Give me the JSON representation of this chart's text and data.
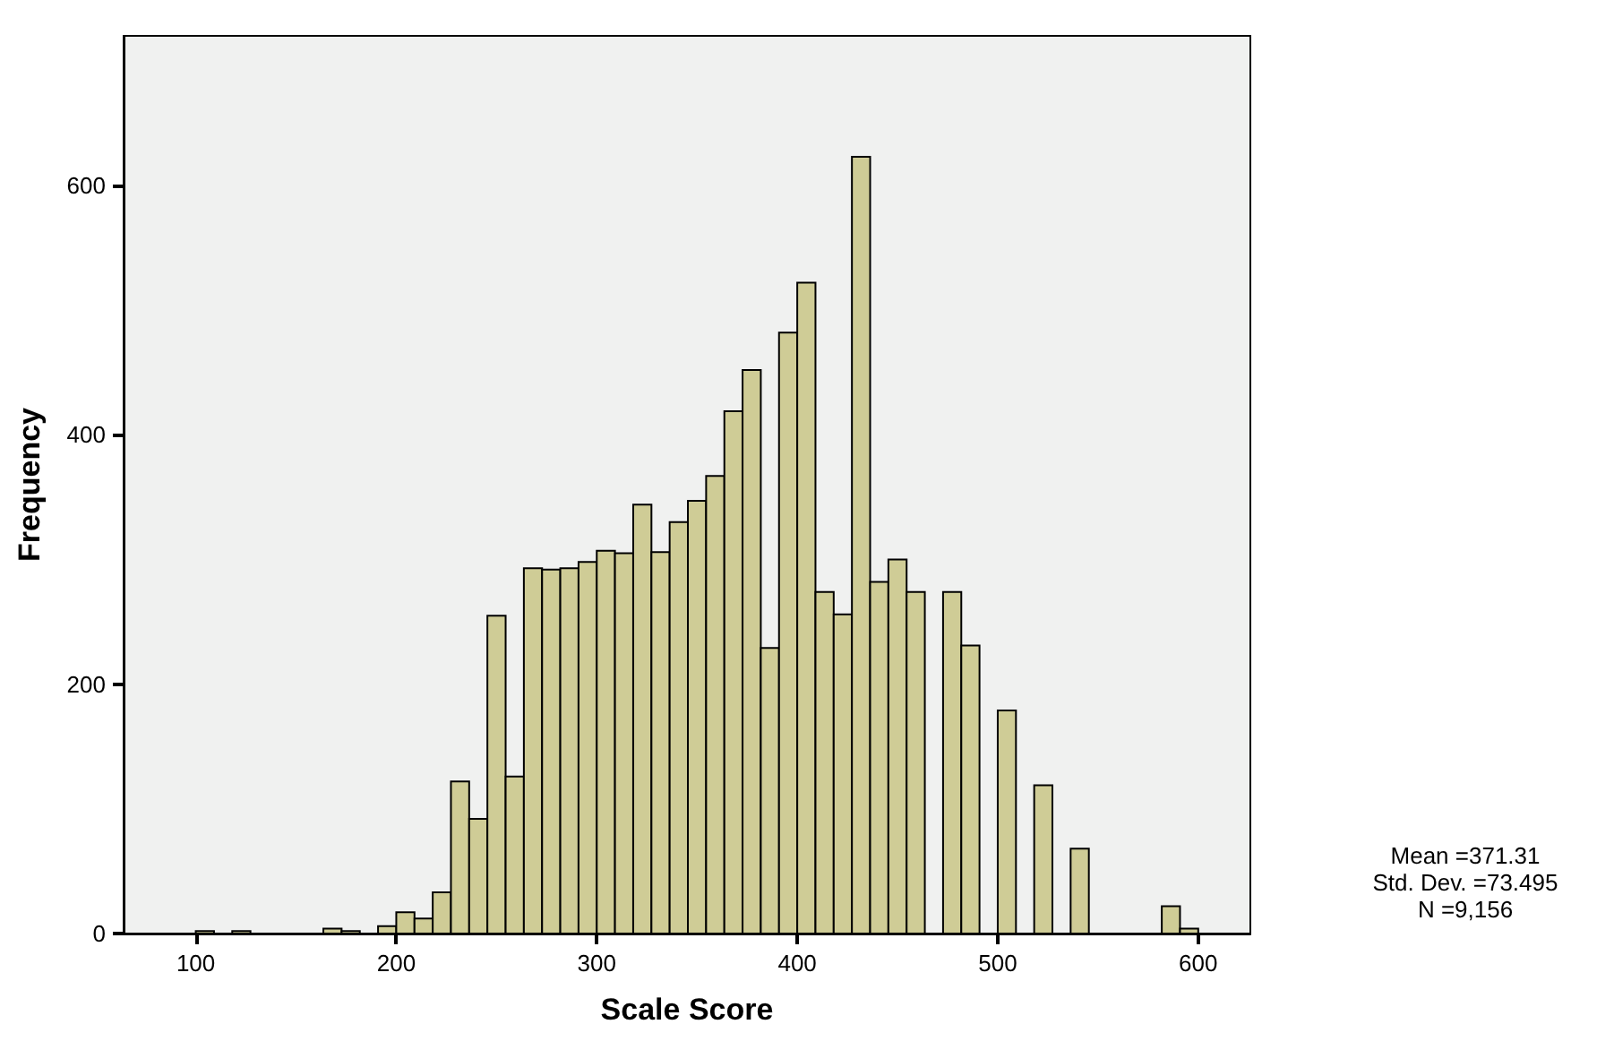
{
  "chart_data": {
    "type": "histogram",
    "xlabel": "Scale Score",
    "ylabel": "Frequency",
    "bins": [
      100,
      109.09,
      118.18,
      127.27,
      136.36,
      145.45,
      154.55,
      163.64,
      172.73,
      181.82,
      190.91,
      200,
      209.09,
      218.18,
      227.27,
      236.36,
      245.45,
      254.55,
      263.64,
      272.73,
      281.82,
      290.91,
      300,
      309.09,
      318.18,
      327.27,
      336.36,
      345.45,
      354.55,
      363.64,
      372.73,
      381.82,
      390.91,
      400,
      409.09,
      418.18,
      427.27,
      436.36,
      445.45,
      454.55,
      463.64,
      472.73,
      481.82,
      490.91,
      500,
      509.09,
      518.18,
      527.27,
      536.36,
      545.45,
      554.55,
      563.64,
      572.73,
      581.82,
      590.91,
      600
    ],
    "values": [
      2,
      0,
      2,
      0,
      0,
      0,
      0,
      4,
      2,
      0,
      6,
      17,
      12,
      33,
      122,
      92,
      255,
      126,
      293,
      292,
      293,
      298,
      307,
      305,
      344,
      306,
      330,
      347,
      367,
      419,
      452,
      229,
      482,
      522,
      274,
      256,
      623,
      282,
      300,
      274,
      0,
      274,
      231,
      0,
      179,
      0,
      119,
      0,
      68,
      0,
      0,
      0,
      0,
      22,
      4
    ],
    "color": "#cfcc96",
    "xlim": [
      64,
      626
    ],
    "xticks": [
      100,
      200,
      300,
      400,
      500,
      600
    ],
    "ylim": [
      0,
      720
    ],
    "yticks": [
      0,
      200,
      400,
      600
    ],
    "grid": false,
    "annotations": [
      "Mean =371.31",
      "Std. Dev. =73.495",
      "N =9,156"
    ]
  }
}
